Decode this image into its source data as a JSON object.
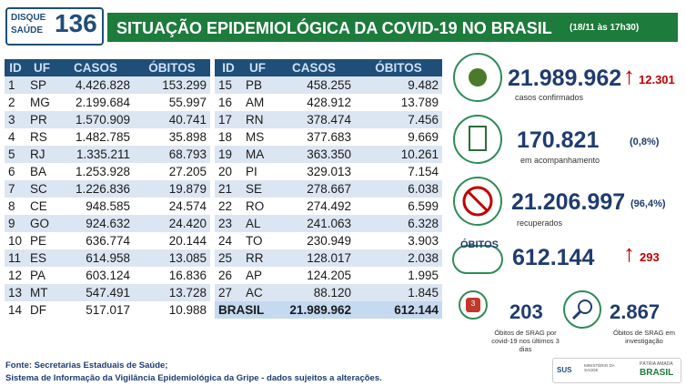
{
  "header": {
    "logo": {
      "line1": "DISQUE",
      "line2": "SAÚDE",
      "number": "136"
    },
    "title": "SITUAÇÃO EPIDEMIOLÓGICA DA COVID-19 NO BRASIL",
    "subtitle": "(18/11 às 17h30)"
  },
  "tables": [
    {
      "columns": [
        "ID",
        "UF",
        "CASOS",
        "ÓBITOS"
      ],
      "rows": [
        [
          "1",
          "SP",
          "4.426.828",
          "153.299"
        ],
        [
          "2",
          "MG",
          "2.199.684",
          "55.997"
        ],
        [
          "3",
          "PR",
          "1.570.909",
          "40.741"
        ],
        [
          "4",
          "RS",
          "1.482.785",
          "35.898"
        ],
        [
          "5",
          "RJ",
          "1.335.211",
          "68.793"
        ],
        [
          "6",
          "BA",
          "1.253.928",
          "27.205"
        ],
        [
          "7",
          "SC",
          "1.226.836",
          "19.879"
        ],
        [
          "8",
          "CE",
          "948.585",
          "24.574"
        ],
        [
          "9",
          "GO",
          "924.632",
          "24.420"
        ],
        [
          "10",
          "PE",
          "636.774",
          "20.144"
        ],
        [
          "11",
          "ES",
          "614.958",
          "13.085"
        ],
        [
          "12",
          "PA",
          "603.124",
          "16.836"
        ],
        [
          "13",
          "MT",
          "547.491",
          "13.728"
        ],
        [
          "14",
          "DF",
          "517.017",
          "10.988"
        ]
      ]
    },
    {
      "columns": [
        "ID",
        "UF",
        "CASOS",
        "ÓBITOS"
      ],
      "rows": [
        [
          "15",
          "PB",
          "458.255",
          "9.482"
        ],
        [
          "16",
          "AM",
          "428.912",
          "13.789"
        ],
        [
          "17",
          "RN",
          "378.474",
          "7.456"
        ],
        [
          "18",
          "MS",
          "377.683",
          "9.669"
        ],
        [
          "19",
          "MA",
          "363.350",
          "10.261"
        ],
        [
          "20",
          "PI",
          "329.013",
          "7.154"
        ],
        [
          "21",
          "SE",
          "278.667",
          "6.038"
        ],
        [
          "22",
          "RO",
          "274.492",
          "6.599"
        ],
        [
          "23",
          "AL",
          "241.063",
          "6.328"
        ],
        [
          "24",
          "TO",
          "230.949",
          "3.903"
        ],
        [
          "25",
          "RR",
          "128.017",
          "2.038"
        ],
        [
          "26",
          "AP",
          "124.205",
          "1.995"
        ],
        [
          "27",
          "AC",
          "88.120",
          "1.845"
        ]
      ],
      "total": [
        "BRASIL",
        "21.989.962",
        "612.144"
      ]
    }
  ],
  "stats": {
    "confirmed": {
      "value": "21.989.962",
      "change": "12.301",
      "label": "casos confirmados"
    },
    "monitoring": {
      "value": "170.821",
      "share": "(0,8%)",
      "label": "em acompanhamento"
    },
    "recovered": {
      "value": "21.206.997",
      "share": "(96,4%)",
      "label": "recuperados"
    },
    "deaths": {
      "badge": "ÓBITOS",
      "value": "612.144",
      "change": "293"
    },
    "srag_recent": {
      "icon_text": "3",
      "value": "203",
      "label": "Óbitos de SRAG por covid-19 nos últimos 3 dias"
    },
    "srag_investigation": {
      "value": "2.867",
      "label": "Óbitos de SRAG em investigação"
    }
  },
  "footer": {
    "lines": [
      "Fonte: Secretarias Estaduais de Saúde;",
      "Sistema de Informação da Vigilância Epidemiológica da Gripe - dados sujeitos a alterações."
    ]
  },
  "logos": {
    "sus": "SUS",
    "ministry": "MINISTÉRIO DA SAÚDE",
    "motto": "PÁTRIA AMADA",
    "country": "BRASIL"
  }
}
